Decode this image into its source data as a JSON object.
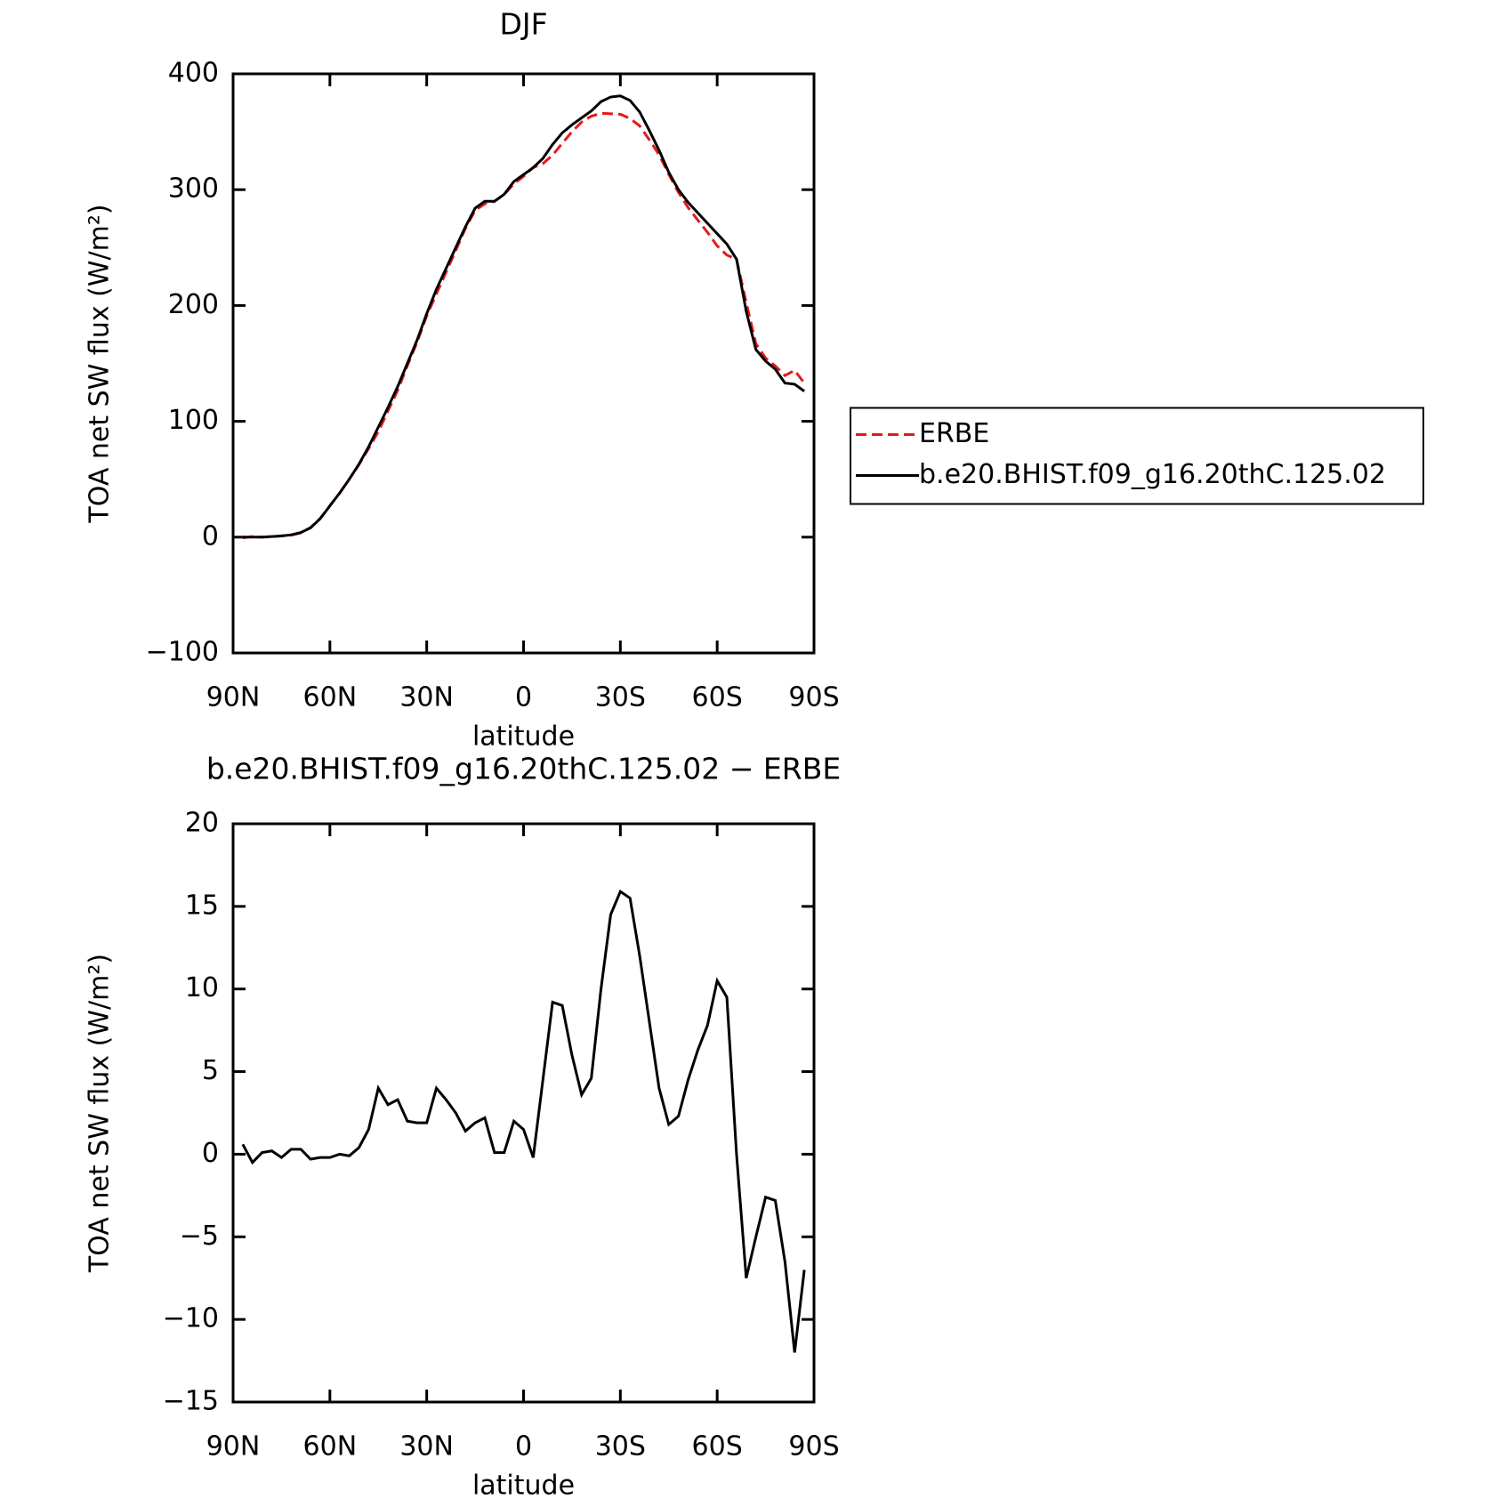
{
  "chart_data": [
    {
      "type": "line",
      "title": "DJF",
      "xlabel": "latitude",
      "ylabel": "TOA net SW flux (W/m²)",
      "x": [
        87,
        84,
        81,
        78,
        75,
        72,
        69,
        66,
        63,
        60,
        57,
        54,
        51,
        48,
        45,
        42,
        39,
        36,
        33,
        30,
        27,
        24,
        21,
        18,
        15,
        12,
        9,
        6,
        3,
        0,
        -3,
        -6,
        -9,
        -12,
        -15,
        -18,
        -21,
        -24,
        -27,
        -30,
        -33,
        -36,
        -39,
        -42,
        -45,
        -48,
        -51,
        -54,
        -57,
        -60,
        -63,
        -66,
        -69,
        -72,
        -75,
        -78,
        -81,
        -84,
        -87
      ],
      "series": [
        {
          "name": "ERBE",
          "color": "#e41a1c",
          "linestyle": "dashed",
          "values": [
            -0.6,
            0.5,
            -0.1,
            0.3,
            1.2,
            1.7,
            3.7,
            8.3,
            16.2,
            27.2,
            38,
            50.1,
            62.6,
            76.5,
            91,
            109,
            126.7,
            148,
            168.1,
            191.1,
            210,
            228.7,
            247.5,
            266.6,
            282.1,
            287.8,
            289.9,
            295.9,
            305,
            311.5,
            319.2,
            322.5,
            329.8,
            340,
            350,
            358.4,
            363.4,
            366,
            365.5,
            365.1,
            361.5,
            355,
            343,
            330,
            313.2,
            297.7,
            284.5,
            273.7,
            263.2,
            251.5,
            243.5,
            240,
            202.5,
            167,
            154.6,
            147.8,
            139.5,
            144,
            133
          ]
        },
        {
          "name": "b.e20.BHIST.f09_g16.20thC.125.02",
          "color": "#000000",
          "linestyle": "solid",
          "values": [
            0,
            0,
            0,
            0.5,
            1,
            2,
            4,
            8,
            16,
            27,
            38,
            50,
            63,
            78,
            95,
            112,
            130,
            150,
            170,
            193,
            214,
            232,
            250,
            268,
            284,
            290,
            290,
            296,
            307,
            313,
            319,
            327,
            339,
            349,
            356,
            362,
            368,
            376,
            380,
            381,
            377,
            367,
            351,
            334,
            315,
            300,
            289,
            280,
            271,
            262,
            253,
            240,
            195,
            162,
            152,
            145,
            133,
            132,
            126
          ]
        }
      ],
      "xlim": [
        90,
        -90
      ],
      "xticks": [
        {
          "value": 90,
          "label": "90N"
        },
        {
          "value": 60,
          "label": "60N"
        },
        {
          "value": 30,
          "label": "30N"
        },
        0,
        {
          "value": -30,
          "label": "30S"
        },
        {
          "value": -60,
          "label": "60S"
        },
        {
          "value": -90,
          "label": "90S"
        }
      ],
      "ylim": [
        -100,
        400
      ],
      "yticks": [
        {
          "value": -100,
          "label": "−100"
        },
        0,
        100,
        200,
        300,
        400
      ],
      "legend": "right"
    },
    {
      "type": "line",
      "title": "b.e20.BHIST.f09_g16.20thC.125.02 − ERBE",
      "xlabel": "latitude",
      "ylabel": "TOA net SW flux (W/m²)",
      "x": [
        87,
        84,
        81,
        78,
        75,
        72,
        69,
        66,
        63,
        60,
        57,
        54,
        51,
        48,
        45,
        42,
        39,
        36,
        33,
        30,
        27,
        24,
        21,
        18,
        15,
        12,
        9,
        6,
        3,
        0,
        -3,
        -6,
        -9,
        -12,
        -15,
        -18,
        -21,
        -24,
        -27,
        -30,
        -33,
        -36,
        -39,
        -42,
        -45,
        -48,
        -51,
        -54,
        -57,
        -60,
        -63,
        -66,
        -69,
        -72,
        -75,
        -78,
        -81,
        -84,
        -87
      ],
      "values": [
        0.6,
        -0.5,
        0.1,
        0.2,
        -0.2,
        0.3,
        0.3,
        -0.3,
        -0.2,
        -0.2,
        0,
        -0.1,
        0.4,
        1.5,
        4,
        3,
        3.3,
        2,
        1.9,
        1.9,
        4,
        3.3,
        2.5,
        1.4,
        1.9,
        2.2,
        0.1,
        0.1,
        2,
        1.5,
        -0.2,
        4.5,
        9.2,
        9,
        6,
        3.6,
        4.6,
        10,
        14.5,
        15.9,
        15.5,
        12,
        8,
        4,
        1.8,
        2.3,
        4.5,
        6.3,
        7.8,
        10.5,
        9.5,
        0,
        -7.5,
        -5,
        -2.6,
        -2.8,
        -6.5,
        -12,
        -7
      ],
      "color": "#000000",
      "xlim": [
        90,
        -90
      ],
      "xticks": [
        {
          "value": 90,
          "label": "90N"
        },
        {
          "value": 60,
          "label": "60N"
        },
        {
          "value": 30,
          "label": "30N"
        },
        0,
        {
          "value": -30,
          "label": "30S"
        },
        {
          "value": -60,
          "label": "60S"
        },
        {
          "value": -90,
          "label": "90S"
        }
      ],
      "ylim": [
        -15,
        20
      ],
      "yticks": [
        {
          "value": -15,
          "label": "−15"
        },
        {
          "value": -10,
          "label": "−10"
        },
        {
          "value": -5,
          "label": "−5"
        },
        0,
        5,
        10,
        15,
        20
      ]
    }
  ]
}
